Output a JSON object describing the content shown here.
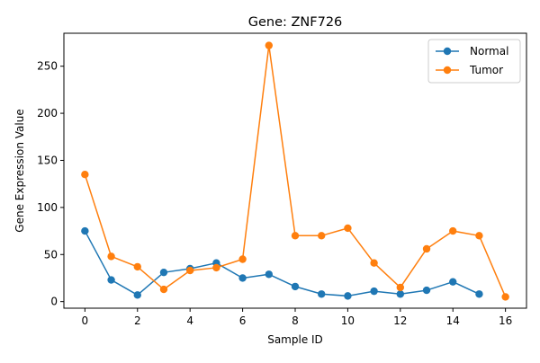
{
  "chart_data": {
    "type": "line",
    "title": "Gene: ZNF726",
    "xlabel": "Sample ID",
    "ylabel": "Gene Expression Value",
    "xlim": [
      -0.8,
      16.8
    ],
    "ylim": [
      -7,
      285
    ],
    "xticks": [
      0,
      2,
      4,
      6,
      8,
      10,
      12,
      14,
      16
    ],
    "yticks": [
      0,
      50,
      100,
      150,
      200,
      250
    ],
    "grid": false,
    "legend_position": "top-right",
    "series": [
      {
        "name": "Normal",
        "color": "#1f77b4",
        "x": [
          0,
          1,
          2,
          3,
          4,
          5,
          6,
          7,
          8,
          9,
          10,
          11,
          12,
          13,
          14,
          15
        ],
        "y": [
          75,
          23,
          7,
          31,
          35,
          41,
          25,
          29,
          16,
          8,
          6,
          11,
          8,
          12,
          21,
          8
        ]
      },
      {
        "name": "Tumor",
        "color": "#ff7f0e",
        "x": [
          0,
          1,
          2,
          3,
          4,
          5,
          6,
          7,
          8,
          9,
          10,
          11,
          12,
          13,
          14,
          15,
          16
        ],
        "y": [
          135,
          48,
          37,
          13,
          33,
          36,
          45,
          272,
          70,
          70,
          78,
          41,
          15,
          56,
          75,
          70,
          5
        ]
      }
    ]
  }
}
